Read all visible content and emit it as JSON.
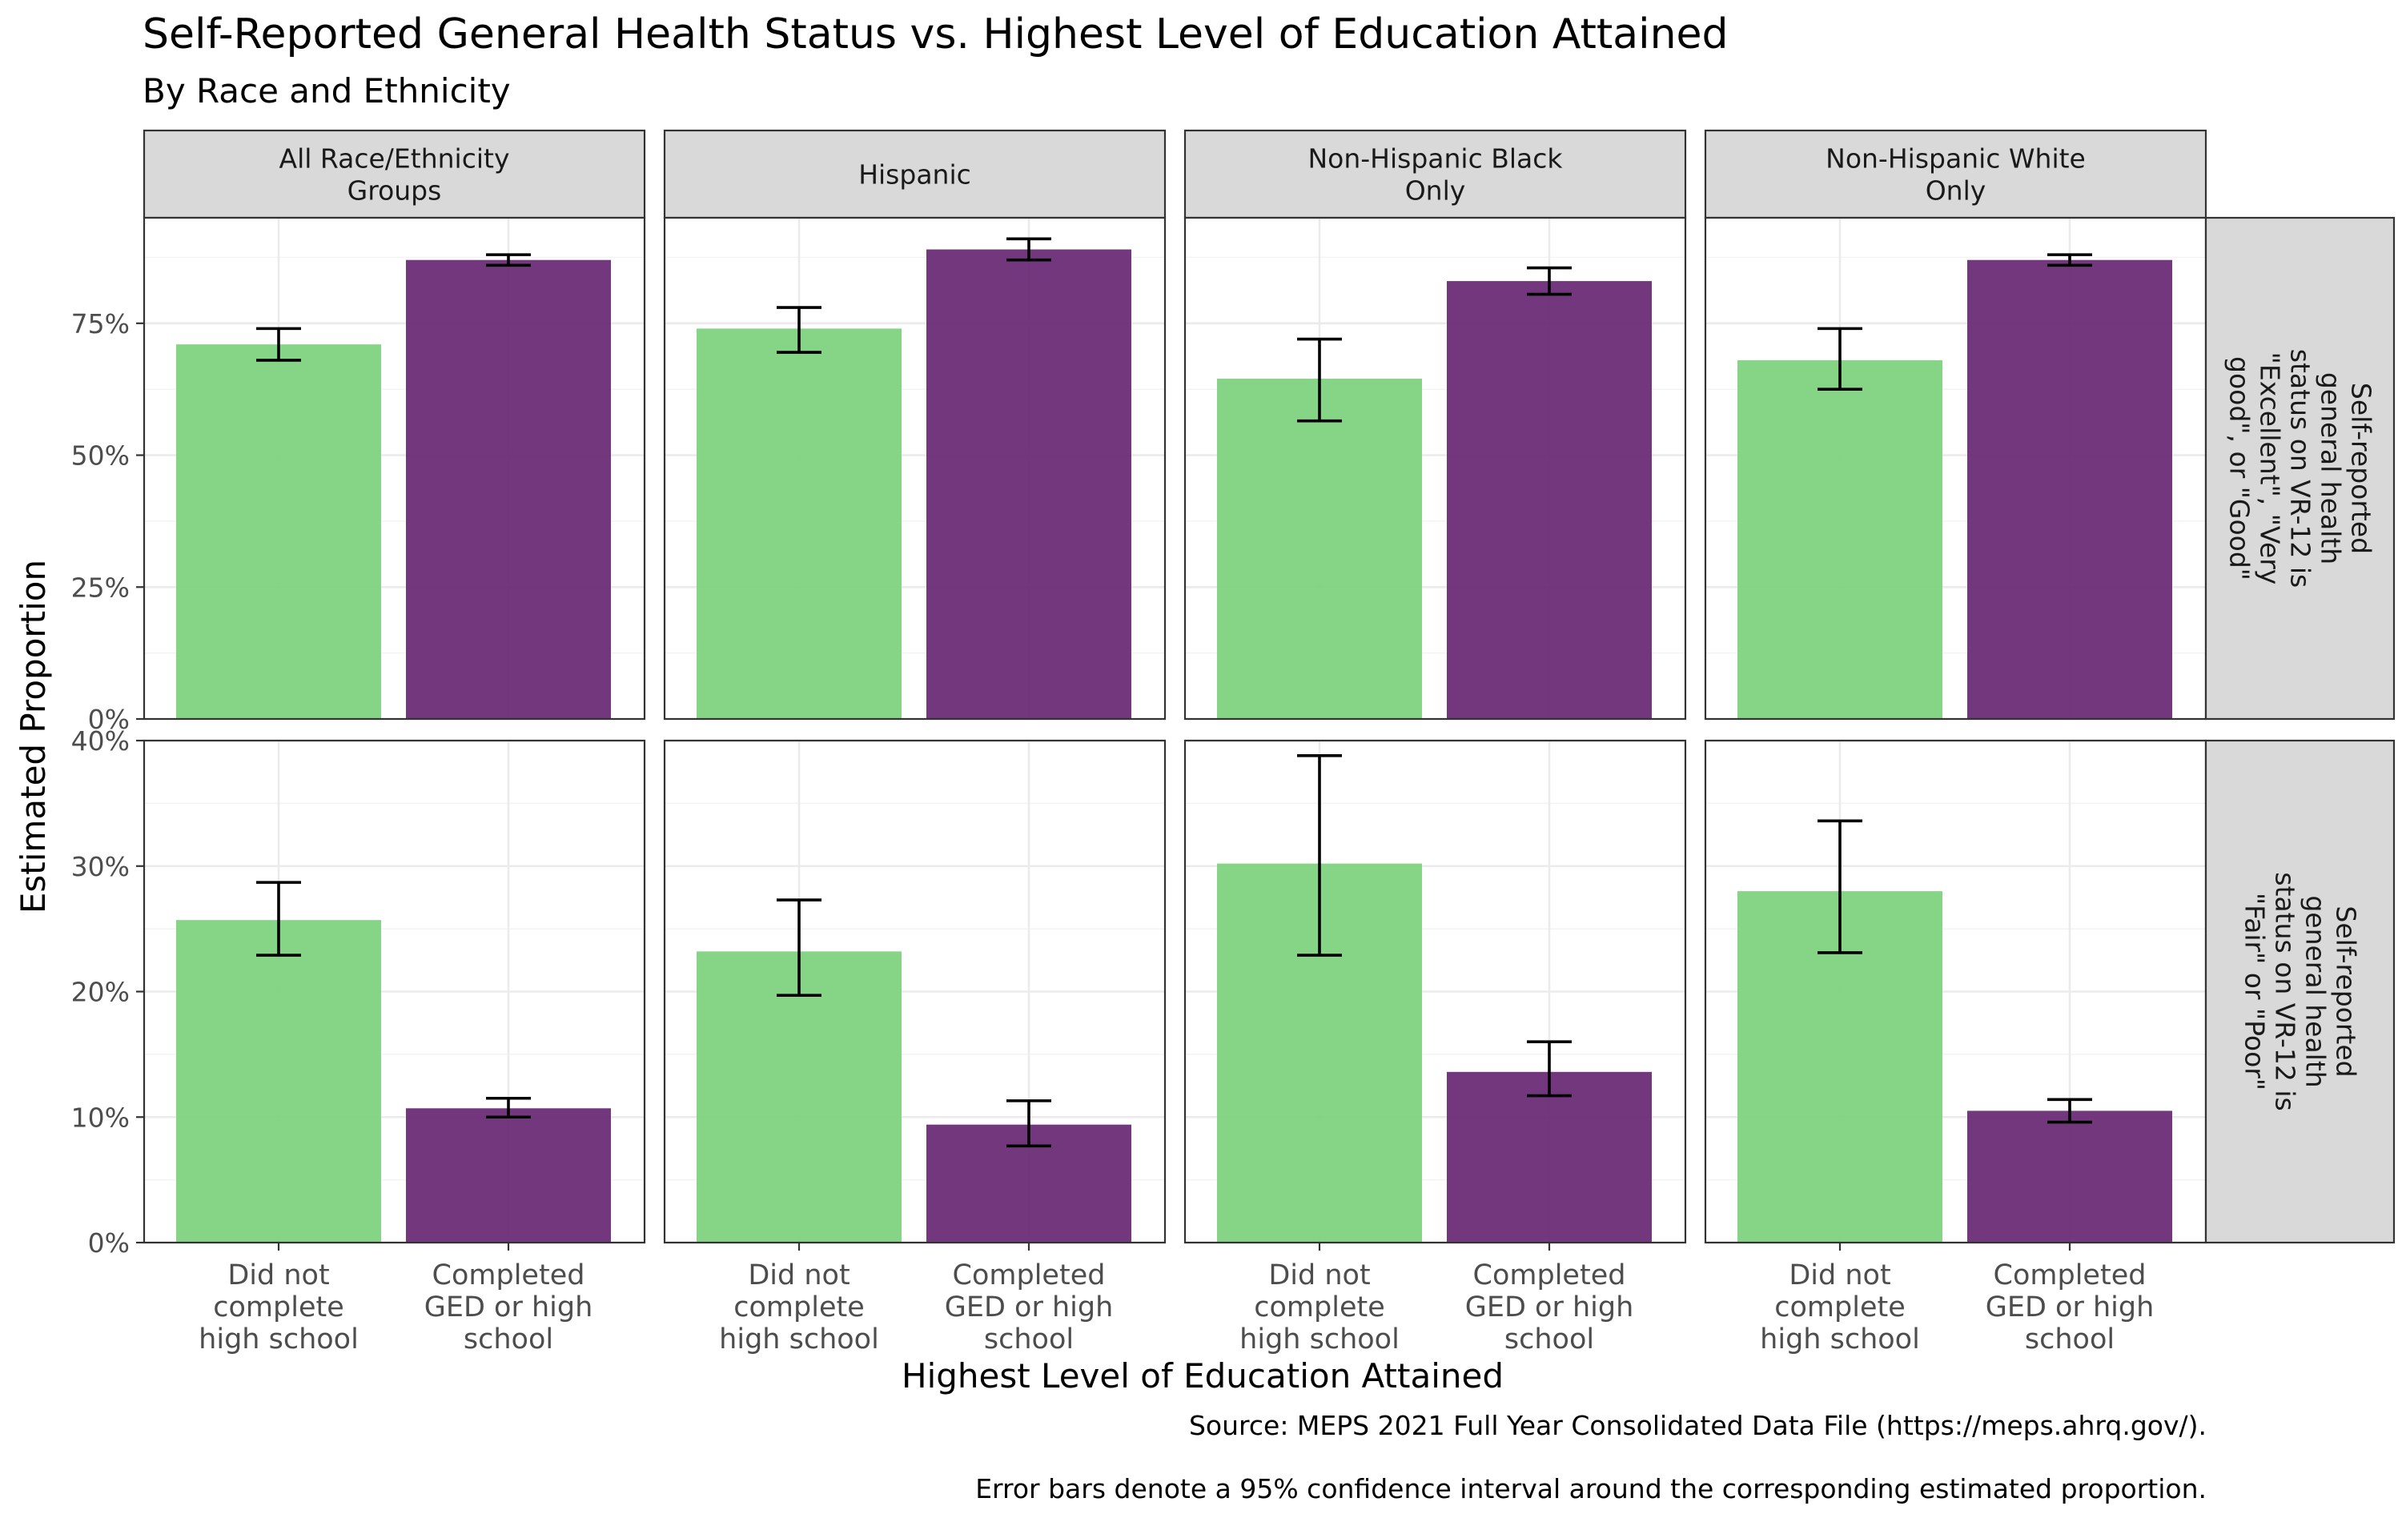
{
  "title": "Self-Reported General Health Status vs. Highest Level of Education Attained",
  "subtitle": "By Race and Ethnicity",
  "caption_lines": [
    "Source: MEPS 2021 Full Year Consolidated Data File (https://meps.ahrq.gov/).",
    "Error bars denote a 95% confidence interval around the corresponding estimated proportion."
  ],
  "chart_data": {
    "type": "bar",
    "xlabel": "Highest Level of Education Attained",
    "ylabel": "Estimated Proportion",
    "categories": [
      [
        "Did not",
        "complete",
        "high school"
      ],
      [
        "Completed",
        "GED or high",
        "school"
      ]
    ],
    "colors": [
      "#7fd37f",
      "#6a2c75"
    ],
    "columns": [
      [
        "All Race/Ethnicity",
        "Groups"
      ],
      [
        "Hispanic"
      ],
      [
        "Non-Hispanic Black",
        "Only"
      ],
      [
        "Non-Hispanic White",
        "Only"
      ]
    ],
    "rows": [
      {
        "label": [
          "Self-reported",
          "general health",
          "status on VR-12 is",
          "\"Excellent\", \"Very",
          "good\", or \"Good\""
        ],
        "ylim": [
          0,
          0.95
        ],
        "yticks": [
          0,
          0.25,
          0.5,
          0.75
        ],
        "ytick_labels": [
          "0%",
          "25%",
          "50%",
          "75%"
        ],
        "values": [
          [
            0.71,
            0.87
          ],
          [
            0.74,
            0.89
          ],
          [
            0.645,
            0.83
          ],
          [
            0.68,
            0.87
          ]
        ],
        "ci": [
          [
            [
              0.68,
              0.74
            ],
            [
              0.86,
              0.88
            ]
          ],
          [
            [
              0.695,
              0.78
            ],
            [
              0.87,
              0.91
            ]
          ],
          [
            [
              0.565,
              0.72
            ],
            [
              0.805,
              0.855
            ]
          ],
          [
            [
              0.625,
              0.74
            ],
            [
              0.86,
              0.88
            ]
          ]
        ]
      },
      {
        "label": [
          "Self-reported",
          "general health",
          "status on VR-12 is",
          "\"Fair\" or \"Poor\""
        ],
        "ylim": [
          0,
          0.4
        ],
        "yticks": [
          0,
          0.1,
          0.2,
          0.3,
          0.4
        ],
        "ytick_labels": [
          "0%",
          "10%",
          "20%",
          "30%",
          "40%"
        ],
        "values": [
          [
            0.257,
            0.107
          ],
          [
            0.232,
            0.094
          ],
          [
            0.302,
            0.136
          ],
          [
            0.28,
            0.105
          ]
        ],
        "ci": [
          [
            [
              0.229,
              0.287
            ],
            [
              0.1,
              0.115
            ]
          ],
          [
            [
              0.197,
              0.273
            ],
            [
              0.077,
              0.113
            ]
          ],
          [
            [
              0.229,
              0.388
            ],
            [
              0.117,
              0.16
            ]
          ],
          [
            [
              0.231,
              0.336
            ],
            [
              0.096,
              0.114
            ]
          ]
        ]
      }
    ]
  }
}
